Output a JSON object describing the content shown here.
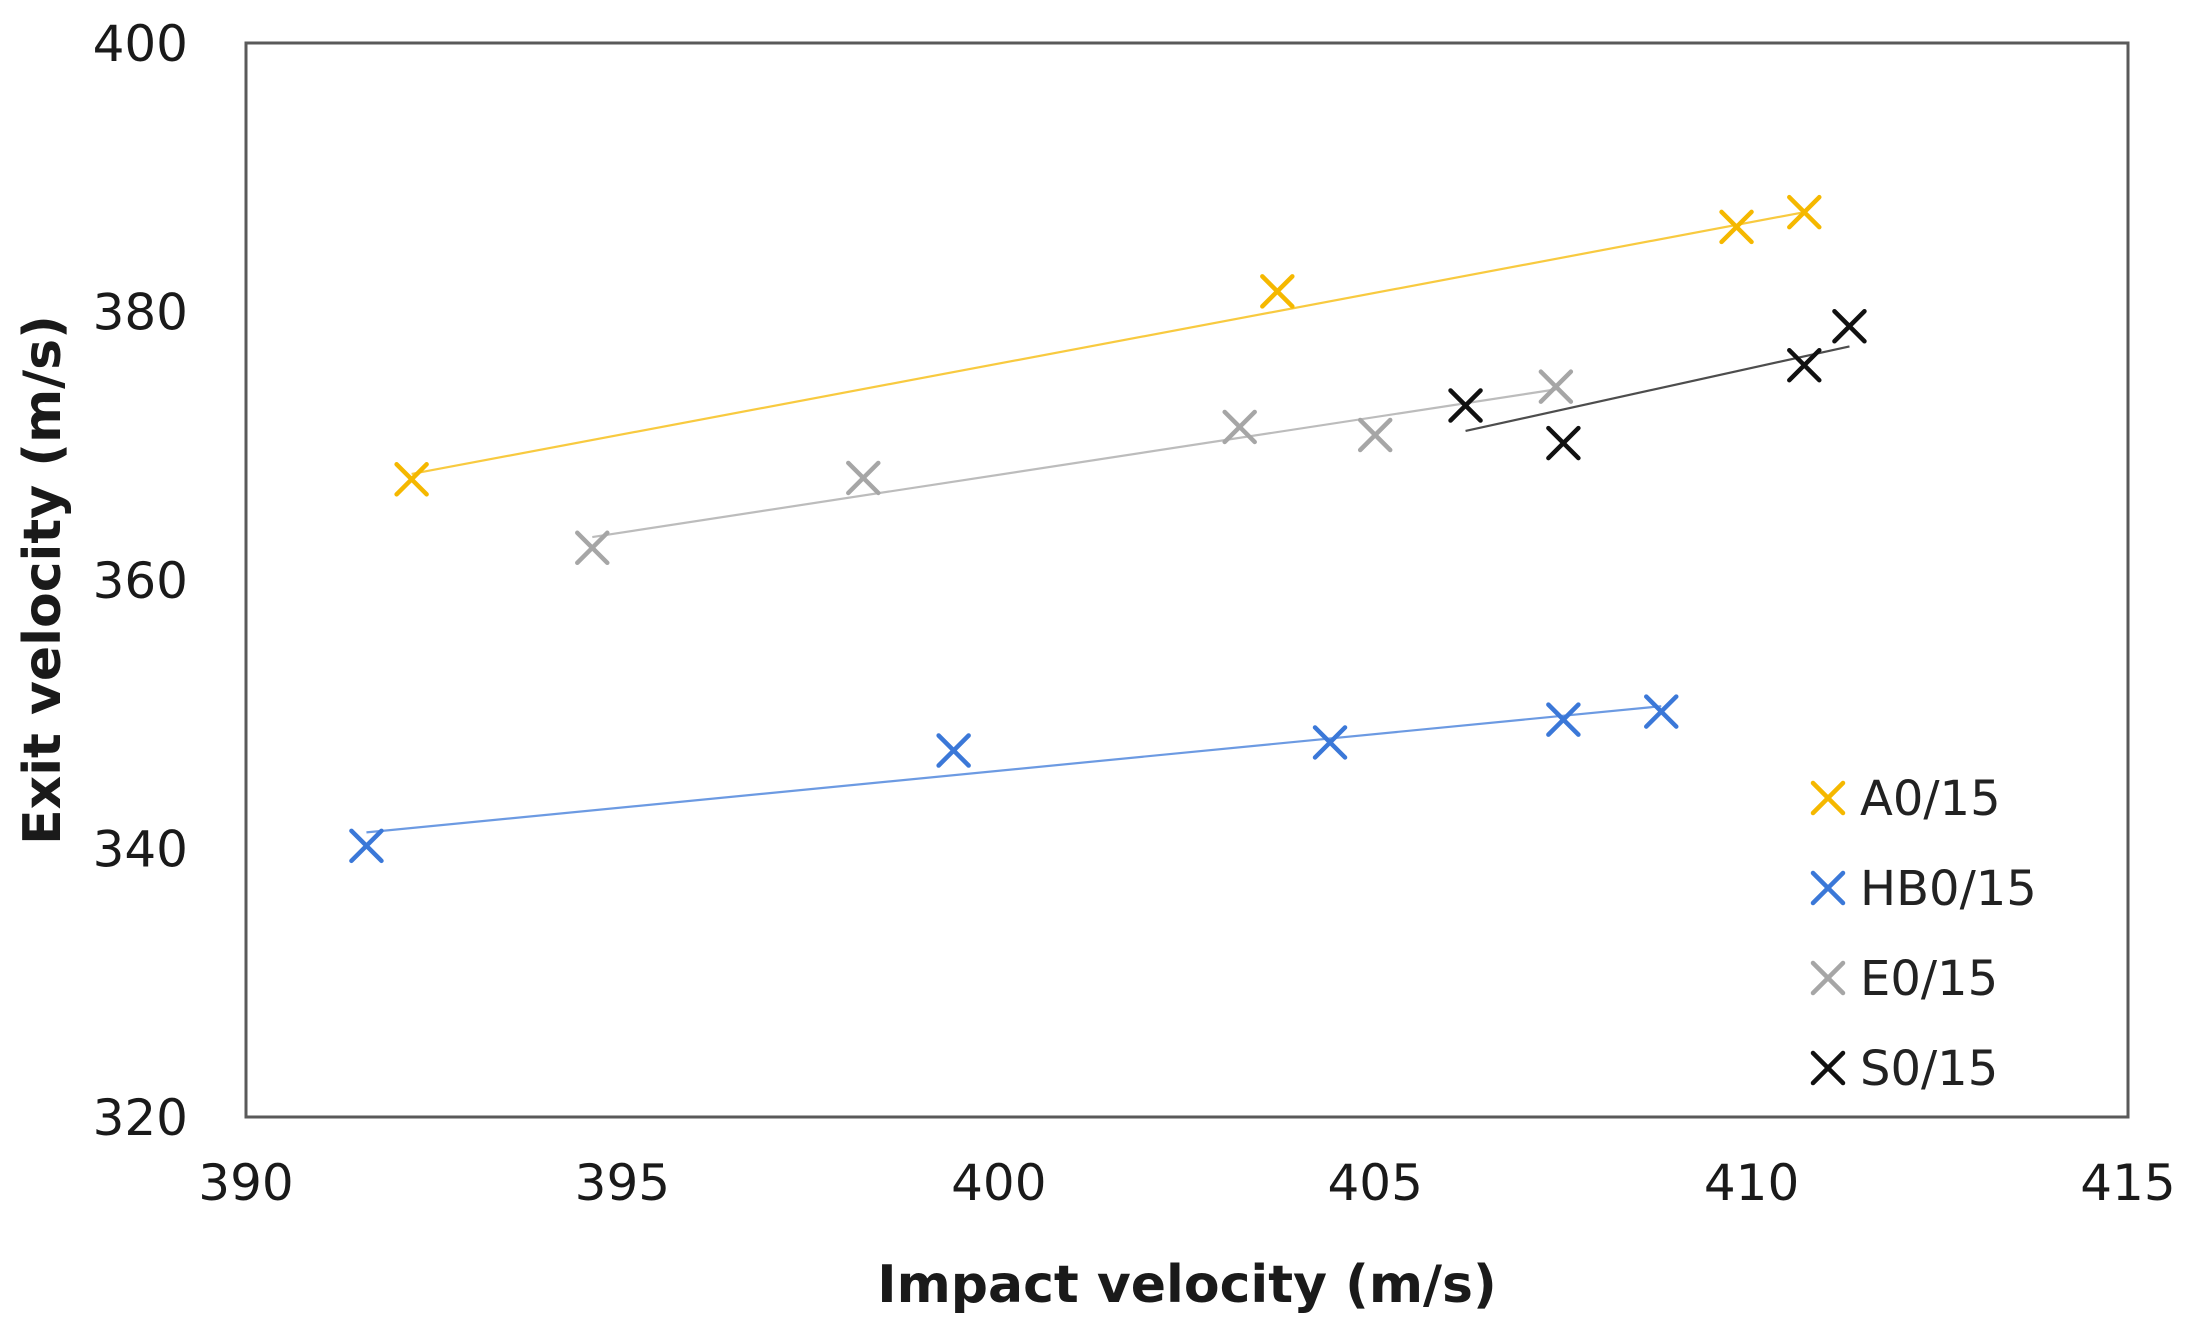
{
  "chart_data": {
    "type": "scatter",
    "title": "",
    "xlabel": "Impact velocity (m/s)",
    "ylabel": "Exit velocity (m/s)",
    "xlim": [
      390,
      415
    ],
    "ylim": [
      320,
      400
    ],
    "xticks": [
      "390",
      "395",
      "400",
      "405",
      "410",
      "415"
    ],
    "yticks": [
      "320",
      "340",
      "360",
      "380",
      "400"
    ],
    "grid": false,
    "legend_position": "right",
    "series": [
      {
        "name": "A0/15",
        "color": "#f5b800",
        "marker": "x",
        "points": [
          [
            392.2,
            367.5
          ],
          [
            403.7,
            381.5
          ],
          [
            409.8,
            386.3
          ],
          [
            410.7,
            387.4
          ]
        ],
        "trendline": [
          [
            392.2,
            367.9
          ],
          [
            410.7,
            387.4
          ]
        ]
      },
      {
        "name": "HB0/15",
        "color": "#3b78d8",
        "marker": "x",
        "points": [
          [
            391.6,
            340.2
          ],
          [
            399.4,
            347.3
          ],
          [
            404.4,
            347.9
          ],
          [
            407.5,
            349.6
          ],
          [
            408.8,
            350.2
          ]
        ],
        "trendline": [
          [
            391.6,
            341.2
          ],
          [
            408.8,
            350.6
          ]
        ]
      },
      {
        "name": "E0/15",
        "color": "#a6a6a6",
        "marker": "x",
        "points": [
          [
            394.6,
            362.4
          ],
          [
            398.2,
            367.6
          ],
          [
            403.2,
            371.4
          ],
          [
            405.0,
            370.8
          ],
          [
            407.4,
            374.4
          ]
        ],
        "trendline": [
          [
            394.6,
            363.2
          ],
          [
            407.4,
            374.2
          ]
        ]
      },
      {
        "name": "S0/15",
        "color": "#111111",
        "marker": "x",
        "points": [
          [
            406.2,
            373.0
          ],
          [
            407.5,
            370.2
          ],
          [
            410.7,
            376.0
          ],
          [
            411.3,
            378.9
          ]
        ],
        "trendline": [
          [
            406.2,
            371.1
          ],
          [
            411.3,
            377.4
          ]
        ]
      }
    ]
  }
}
